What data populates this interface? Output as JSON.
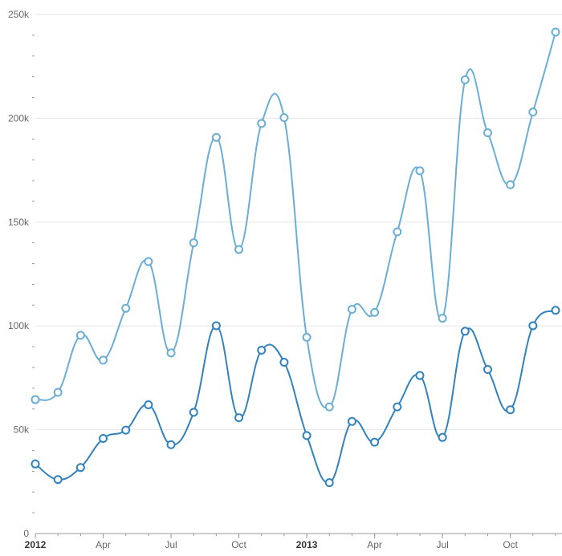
{
  "chart_data": {
    "type": "line",
    "x": [
      "2012-01",
      "2012-02",
      "2012-03",
      "2012-04",
      "2012-05",
      "2012-06",
      "2012-07",
      "2012-08",
      "2012-09",
      "2012-10",
      "2012-11",
      "2012-12",
      "2013-01",
      "2013-02",
      "2013-03",
      "2013-04",
      "2013-05",
      "2013-06",
      "2013-07",
      "2013-08",
      "2013-09",
      "2013-10",
      "2013-11",
      "2013-12"
    ],
    "series": [
      {
        "color": "#6aaed6",
        "values": [
          64500,
          68000,
          95500,
          83500,
          108500,
          131000,
          87000,
          140000,
          190800,
          136800,
          197500,
          200300,
          94500,
          61000,
          108000,
          106500,
          145300,
          174700,
          103700,
          218500,
          193000,
          168000,
          203000,
          241500
        ]
      },
      {
        "color": "#3182bd",
        "values": [
          33500,
          26000,
          31800,
          45800,
          49800,
          62000,
          42800,
          58400,
          100100,
          55800,
          88300,
          82500,
          47200,
          24500,
          54000,
          44000,
          61000,
          76100,
          46300,
          97400,
          79000,
          59600,
          100100,
          107500
        ]
      }
    ],
    "yticks": [
      0,
      50000,
      100000,
      150000,
      200000,
      250000
    ],
    "ytick_labels": [
      "0",
      "50k",
      "100k",
      "150k",
      "200k",
      "250k"
    ],
    "xticks": [
      {
        "x": "2012-01",
        "label": "2012",
        "bold": true
      },
      {
        "x": "2012-04",
        "label": "Apr",
        "bold": false
      },
      {
        "x": "2012-07",
        "label": "Jul",
        "bold": false
      },
      {
        "x": "2012-10",
        "label": "Oct",
        "bold": false
      },
      {
        "x": "2013-01",
        "label": "2013",
        "bold": true
      },
      {
        "x": "2013-04",
        "label": "Apr",
        "bold": false
      },
      {
        "x": "2013-07",
        "label": "Jul",
        "bold": false
      },
      {
        "x": "2013-10",
        "label": "Oct",
        "bold": false
      }
    ],
    "ylim": [
      0,
      250000
    ],
    "grid": true,
    "title": "",
    "xlabel": "",
    "ylabel": ""
  }
}
